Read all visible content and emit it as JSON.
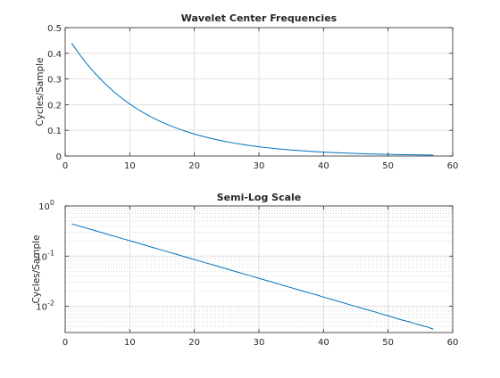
{
  "chart_data": [
    {
      "type": "line",
      "title": "Wavelet Center Frequencies",
      "ylabel": "Cycles/Sample",
      "xlabel": "",
      "xlim": [
        0,
        60
      ],
      "ylim": [
        0,
        0.5
      ],
      "yscale": "linear",
      "grid": true,
      "xticks": [
        "0",
        "10",
        "20",
        "30",
        "40",
        "50",
        "60"
      ],
      "yticks": [
        "0",
        "0.1",
        "0.2",
        "0.3",
        "0.4",
        "0.5"
      ],
      "x": [
        1,
        2,
        3,
        4,
        5,
        6,
        7,
        8,
        9,
        10,
        11,
        12,
        13,
        14,
        15,
        16,
        17,
        18,
        19,
        20,
        21,
        22,
        23,
        24,
        25,
        26,
        27,
        28,
        29,
        30,
        31,
        32,
        33,
        34,
        35,
        36,
        37,
        38,
        39,
        40,
        41,
        42,
        43,
        44,
        45,
        46,
        47,
        48,
        49,
        50,
        51,
        52,
        53,
        54,
        55,
        56,
        57
      ],
      "y": [
        0.4398,
        0.4035,
        0.3702,
        0.3396,
        0.3116,
        0.2859,
        0.2623,
        0.2406,
        0.2208,
        0.2025,
        0.1858,
        0.1705,
        0.1564,
        0.1435,
        0.1317,
        0.1208,
        0.1108,
        0.1017,
        0.0933,
        0.0856,
        0.0785,
        0.072,
        0.0661,
        0.0606,
        0.0556,
        0.051,
        0.0468,
        0.043,
        0.0394,
        0.0362,
        0.0332,
        0.0304,
        0.0279,
        0.0256,
        0.0235,
        0.0216,
        0.0198,
        0.0182,
        0.0167,
        0.0153,
        0.014,
        0.0129,
        0.0118,
        0.0108,
        0.0099,
        0.0091,
        0.0084,
        0.0077,
        0.007,
        0.0065,
        0.0059,
        0.0054,
        0.005,
        0.0046,
        0.0042,
        0.0039,
        0.0035
      ]
    },
    {
      "type": "line",
      "title": "Semi-Log Scale",
      "ylabel": "Cycles/Sample",
      "xlabel": "",
      "xlim": [
        0,
        60
      ],
      "ylim": [
        0.003,
        1
      ],
      "yscale": "log",
      "grid": true,
      "minor_grid": true,
      "xticks": [
        "0",
        "10",
        "20",
        "30",
        "40",
        "50",
        "60"
      ],
      "yticks": [
        {
          "base": "10",
          "exp": "-2",
          "value": 0.01
        },
        {
          "base": "10",
          "exp": "-1",
          "value": 0.1
        },
        {
          "base": "10",
          "exp": "0",
          "value": 1
        }
      ],
      "x": [
        1,
        2,
        3,
        4,
        5,
        6,
        7,
        8,
        9,
        10,
        11,
        12,
        13,
        14,
        15,
        16,
        17,
        18,
        19,
        20,
        21,
        22,
        23,
        24,
        25,
        26,
        27,
        28,
        29,
        30,
        31,
        32,
        33,
        34,
        35,
        36,
        37,
        38,
        39,
        40,
        41,
        42,
        43,
        44,
        45,
        46,
        47,
        48,
        49,
        50,
        51,
        52,
        53,
        54,
        55,
        56,
        57
      ],
      "y": [
        0.4398,
        0.4035,
        0.3702,
        0.3396,
        0.3116,
        0.2859,
        0.2623,
        0.2406,
        0.2208,
        0.2025,
        0.1858,
        0.1705,
        0.1564,
        0.1435,
        0.1317,
        0.1208,
        0.1108,
        0.1017,
        0.0933,
        0.0856,
        0.0785,
        0.072,
        0.0661,
        0.0606,
        0.0556,
        0.051,
        0.0468,
        0.043,
        0.0394,
        0.0362,
        0.0332,
        0.0304,
        0.0279,
        0.0256,
        0.0235,
        0.0216,
        0.0198,
        0.0182,
        0.0167,
        0.0153,
        0.014,
        0.0129,
        0.0118,
        0.0108,
        0.0099,
        0.0091,
        0.0084,
        0.0077,
        0.007,
        0.0065,
        0.0059,
        0.0054,
        0.005,
        0.0046,
        0.0042,
        0.0039,
        0.0035
      ]
    }
  ],
  "colors": {
    "series": "#0072bd",
    "axis": "#262626",
    "grid": "#d9d9d9"
  }
}
